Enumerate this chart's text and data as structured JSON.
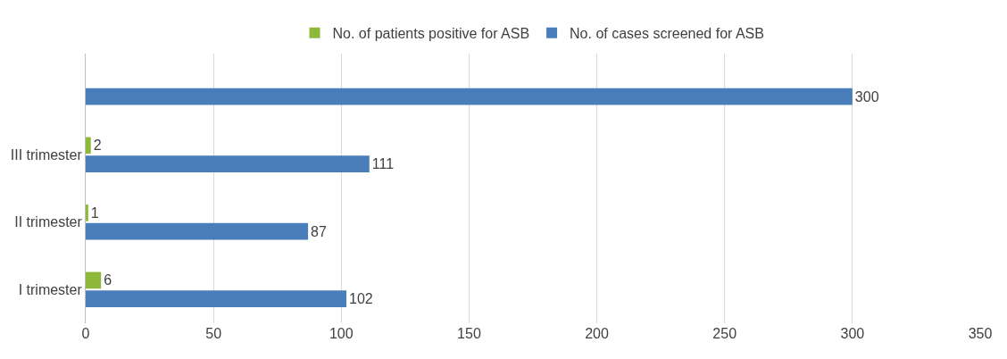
{
  "chart_data": {
    "type": "bar",
    "orientation": "horizontal",
    "categories": [
      null,
      "III trimester",
      "II trimester",
      "I trimester"
    ],
    "series": [
      {
        "name": "No. of patients positive for ASB",
        "color": "#8db83a",
        "values": [
          null,
          2,
          1,
          6
        ]
      },
      {
        "name": "No. of cases screened for ASB",
        "color": "#4a7ebb",
        "values": [
          300,
          111,
          87,
          102
        ]
      }
    ],
    "xlim": [
      0,
      350
    ],
    "xticks": [
      0,
      50,
      100,
      150,
      200,
      250,
      300,
      350
    ],
    "grid": "x",
    "legend": "top",
    "data_labels": true
  }
}
